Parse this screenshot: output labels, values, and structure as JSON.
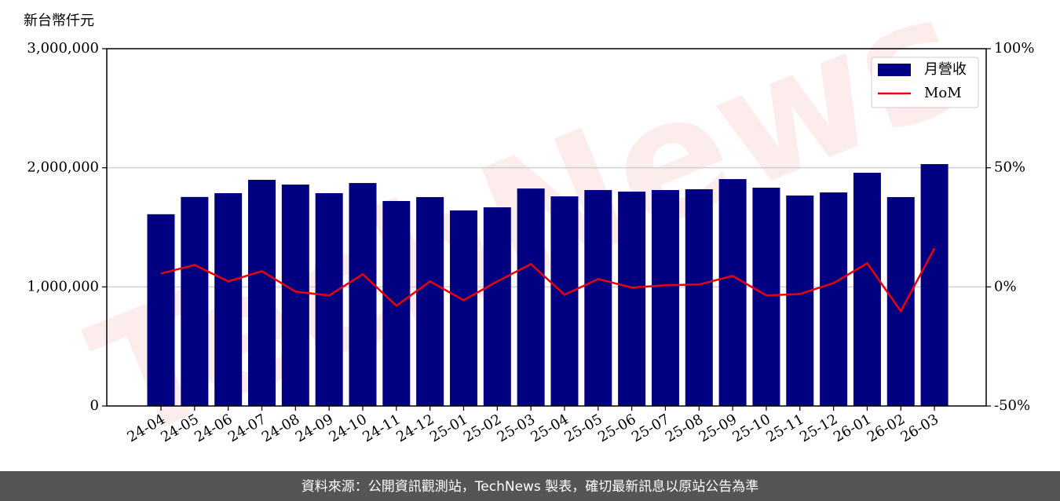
{
  "chart_data": {
    "type": "bar",
    "y_label": "新台幣仟元",
    "watermark": "TechNews",
    "source": "資料來源：公開資訊觀測站，TechNews 製表，確切最新訊息以原站公告為準",
    "categories": [
      "24-04",
      "24-05",
      "24-06",
      "24-07",
      "24-08",
      "24-09",
      "24-10",
      "24-11",
      "24-12",
      "25-01",
      "25-02",
      "25-03",
      "25-04",
      "25-05",
      "25-06",
      "25-07",
      "25-08",
      "25-09",
      "25-10",
      "25-11",
      "25-12",
      "26-01",
      "26-02",
      "26-03"
    ],
    "series": [
      {
        "name": "月營收",
        "type": "bar",
        "color": "#000080",
        "values": [
          1610000,
          1755000,
          1787000,
          1899000,
          1859000,
          1787000,
          1872000,
          1721000,
          1754000,
          1642000,
          1668000,
          1826000,
          1760000,
          1813000,
          1800000,
          1813000,
          1820000,
          1905000,
          1833000,
          1767000,
          1793000,
          1958000,
          1754000,
          2031000
        ]
      },
      {
        "name": "MoM",
        "type": "line",
        "color": "#e8000b",
        "axis": "y2",
        "values": [
          5.6,
          9.2,
          2.3,
          6.6,
          -2.0,
          -3.6,
          5.3,
          -7.9,
          2.3,
          -5.6,
          2.3,
          9.6,
          -3.3,
          3.3,
          -0.3,
          0.7,
          1.0,
          4.6,
          -3.6,
          -3.0,
          1.6,
          9.9,
          -10.2,
          16.2
        ]
      }
    ],
    "ylim": [
      0,
      3000000
    ],
    "yticks": [
      0,
      {
        "value": 1000000,
        "label": "1,000,000"
      },
      {
        "value": 2000000,
        "label": "2,000,000"
      },
      {
        "value": 3000000,
        "label": "3,000,000"
      }
    ],
    "y2lim": [
      -50,
      100
    ],
    "y2ticks": [
      {
        "value": -50,
        "label": "-50%"
      },
      {
        "value": 0,
        "label": "0%"
      },
      {
        "value": 50,
        "label": "50%"
      },
      {
        "value": 100,
        "label": "100%"
      }
    ],
    "grid": true,
    "legend": "upper right"
  }
}
